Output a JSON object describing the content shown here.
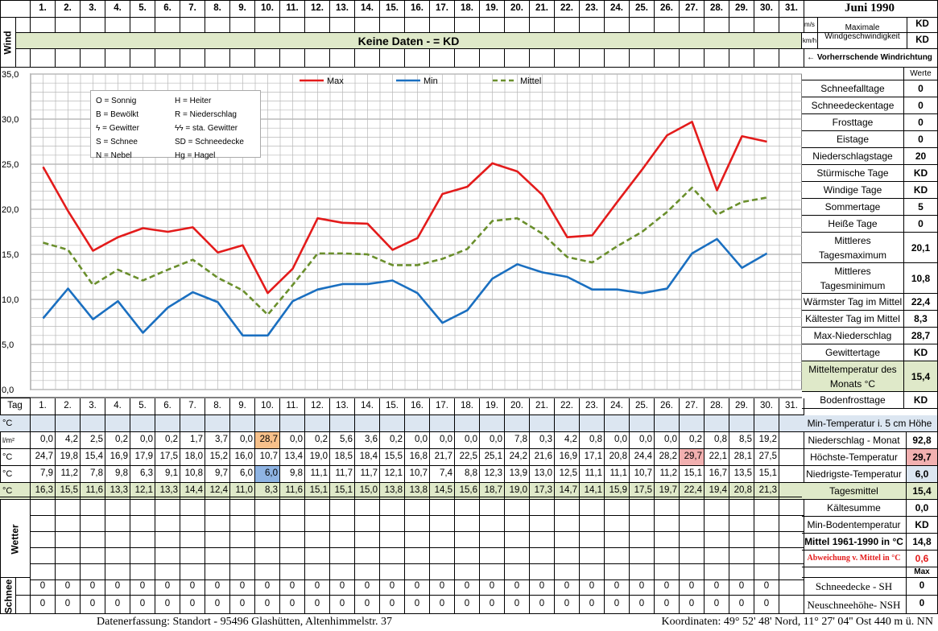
{
  "header": {
    "month_title": "Juni 1990",
    "days": [
      "1.",
      "2.",
      "3.",
      "4.",
      "5.",
      "6.",
      "7.",
      "8.",
      "9.",
      "10.",
      "11.",
      "12.",
      "13.",
      "14.",
      "15.",
      "16.",
      "17.",
      "18.",
      "19.",
      "20.",
      "21.",
      "22.",
      "23.",
      "24.",
      "25.",
      "26.",
      "27.",
      "28.",
      "29.",
      "30.",
      "31."
    ]
  },
  "wind": {
    "label": "Wind",
    "banner": "Keine Daten -  = KD",
    "unit_ms": "m/s",
    "unit_kmh": "km/h",
    "max_label_1": "Maximale",
    "max_label_2": "Windgeschwindigkeit",
    "max_ms": "KD",
    "max_kmh": "KD",
    "direction_label": "← Vorherrschende Windrichtung"
  },
  "legend_keys": {
    "row1a": "O = Sonnig",
    "row1b": "H = Heiter",
    "row2a": "B = Bewölkt",
    "row2b": "R = Niederschlag",
    "row3a": "ϟ = Gewitter",
    "row3b": "ϟϟ = sta. Gewitter",
    "row4a": "S = Schnee",
    "row4b": "SD = Schneedecke",
    "row5a": "N = Nebel",
    "row5b": "Hg = Hagel"
  },
  "chart_data": {
    "type": "line",
    "x": [
      1,
      2,
      3,
      4,
      5,
      6,
      7,
      8,
      9,
      10,
      11,
      12,
      13,
      14,
      15,
      16,
      17,
      18,
      19,
      20,
      21,
      22,
      23,
      24,
      25,
      26,
      27,
      28,
      29,
      30
    ],
    "ylim": [
      0,
      35
    ],
    "yticks": [
      "35,0",
      "30,0",
      "25,0",
      "20,0",
      "15,0",
      "10,0",
      "5,0",
      "0,0"
    ],
    "grid": true,
    "legend": "top",
    "series": [
      {
        "name": "Max",
        "color": "#e31b1b",
        "dash": false,
        "values": [
          24.7,
          19.8,
          15.4,
          16.9,
          17.9,
          17.5,
          18.0,
          15.2,
          16.0,
          10.7,
          13.4,
          19.0,
          18.5,
          18.4,
          15.5,
          16.8,
          21.7,
          22.5,
          25.1,
          24.2,
          21.6,
          16.9,
          17.1,
          20.8,
          24.4,
          28.2,
          29.7,
          22.1,
          28.1,
          27.5
        ]
      },
      {
        "name": "Min",
        "color": "#1a6fc0",
        "dash": false,
        "values": [
          7.9,
          11.2,
          7.8,
          9.8,
          6.3,
          9.1,
          10.8,
          9.7,
          6.0,
          6.0,
          9.8,
          11.1,
          11.7,
          11.7,
          12.1,
          10.7,
          7.4,
          8.8,
          12.3,
          13.9,
          13.0,
          12.5,
          11.1,
          11.1,
          10.7,
          11.2,
          15.1,
          16.7,
          13.5,
          15.1
        ]
      },
      {
        "name": "Mittel",
        "color": "#6a8f2c",
        "dash": true,
        "values": [
          16.3,
          15.5,
          11.6,
          13.3,
          12.1,
          13.3,
          14.4,
          12.4,
          11.0,
          8.3,
          11.6,
          15.1,
          15.1,
          15.0,
          13.8,
          13.8,
          14.5,
          15.6,
          18.7,
          19.0,
          17.3,
          14.7,
          14.1,
          15.9,
          17.5,
          19.7,
          22.4,
          19.4,
          20.8,
          21.3
        ]
      }
    ]
  },
  "table": {
    "tag_label": "Tag",
    "rows": [
      {
        "unit": "°C",
        "values": [
          "",
          "",
          "",
          "",
          "",
          "",
          "",
          "",
          "",
          "",
          "",
          "",
          "",
          "",
          "",
          "",
          "",
          "",
          "",
          "",
          "",
          "",
          "",
          "",
          "",
          "",
          "",
          "",
          "",
          "",
          ""
        ]
      },
      {
        "unit": "l/m²",
        "values": [
          "0,0",
          "4,2",
          "2,5",
          "0,2",
          "0,0",
          "0,2",
          "1,7",
          "3,7",
          "0,0",
          "28,7",
          "0,0",
          "0,2",
          "5,6",
          "3,6",
          "0,2",
          "0,0",
          "0,0",
          "0,0",
          "0,0",
          "7,8",
          "0,3",
          "4,2",
          "0,8",
          "0,0",
          "0,0",
          "0,0",
          "0,2",
          "0,8",
          "8,5",
          "19,2",
          ""
        ]
      },
      {
        "unit": "°C",
        "values": [
          "24,7",
          "19,8",
          "15,4",
          "16,9",
          "17,9",
          "17,5",
          "18,0",
          "15,2",
          "16,0",
          "10,7",
          "13,4",
          "19,0",
          "18,5",
          "18,4",
          "15,5",
          "16,8",
          "21,7",
          "22,5",
          "25,1",
          "24,2",
          "21,6",
          "16,9",
          "17,1",
          "20,8",
          "24,4",
          "28,2",
          "29,7",
          "22,1",
          "28,1",
          "27,5",
          ""
        ]
      },
      {
        "unit": "°C",
        "values": [
          "7,9",
          "11,2",
          "7,8",
          "9,8",
          "6,3",
          "9,1",
          "10,8",
          "9,7",
          "6,0",
          "6,0",
          "9,8",
          "11,1",
          "11,7",
          "11,7",
          "12,1",
          "10,7",
          "7,4",
          "8,8",
          "12,3",
          "13,9",
          "13,0",
          "12,5",
          "11,1",
          "11,1",
          "10,7",
          "11,2",
          "15,1",
          "16,7",
          "13,5",
          "15,1",
          ""
        ]
      },
      {
        "unit": "°C",
        "values": [
          "16,3",
          "15,5",
          "11,6",
          "13,3",
          "12,1",
          "13,3",
          "14,4",
          "12,4",
          "11,0",
          "8,3",
          "11,6",
          "15,1",
          "15,1",
          "15,0",
          "13,8",
          "13,8",
          "14,5",
          "15,6",
          "18,7",
          "19,0",
          "17,3",
          "14,7",
          "14,1",
          "15,9",
          "17,5",
          "19,7",
          "22,4",
          "19,4",
          "20,8",
          "21,3",
          ""
        ]
      }
    ],
    "wetter_label": "Wetter",
    "schnee_label": "Schnee",
    "snow_sh": [
      "0",
      "0",
      "0",
      "0",
      "0",
      "0",
      "0",
      "0",
      "0",
      "0",
      "0",
      "0",
      "0",
      "0",
      "0",
      "0",
      "0",
      "0",
      "0",
      "0",
      "0",
      "0",
      "0",
      "0",
      "0",
      "0",
      "0",
      "0",
      "0",
      "0",
      ""
    ],
    "snow_nsh": [
      "0",
      "0",
      "0",
      "0",
      "0",
      "0",
      "0",
      "0",
      "0",
      "0",
      "0",
      "0",
      "0",
      "0",
      "0",
      "0",
      "0",
      "0",
      "0",
      "0",
      "0",
      "0",
      "0",
      "0",
      "0",
      "0",
      "0",
      "0",
      "0",
      "0",
      ""
    ]
  },
  "stats": {
    "werte_label": "Werte",
    "items": [
      {
        "label": "Schneefalltage",
        "value": "0"
      },
      {
        "label": "Schneedeckentage",
        "value": "0"
      },
      {
        "label": "Frosttage",
        "value": "0"
      },
      {
        "label": "Eistage",
        "value": "0"
      },
      {
        "label": "Niederschlagstage",
        "value": "20"
      },
      {
        "label": "Stürmische Tage",
        "value": "KD"
      },
      {
        "label": "Windige Tage",
        "value": "KD"
      },
      {
        "label": "Sommertage",
        "value": "5"
      },
      {
        "label": "Heiße Tage",
        "value": "0"
      },
      {
        "label": "Mittleres Tagesmaximum",
        "value": "20,1"
      },
      {
        "label": "Mittleres Tagesminimum",
        "value": "10,8"
      },
      {
        "label": "Wärmster Tag im Mittel",
        "value": "22,4"
      },
      {
        "label": "Kältester Tag im Mittel",
        "value": "8,3"
      },
      {
        "label": "Max-Niederschlag",
        "value": "28,7"
      },
      {
        "label": "Gewittertage",
        "value": "KD"
      },
      {
        "label": "Mitteltemperatur des Monats °C",
        "value": "15,4"
      },
      {
        "label": "Bodenfrosttage",
        "value": "KD"
      }
    ],
    "min5cm": "Min-Temperatur i. 5 cm Höhe",
    "summary": [
      {
        "label": "Niederschlag - Monat",
        "value": "92,8"
      },
      {
        "label": "Höchste-Temperatur",
        "value": "29,7"
      },
      {
        "label": "Niedrigste-Temperatur",
        "value": "6,0"
      },
      {
        "label": "Tagesmittel",
        "value": "15,4"
      },
      {
        "label": "Kältesumme",
        "value": "0,0"
      },
      {
        "label": "Min-Bodentemperatur",
        "value": "KD"
      },
      {
        "label": "Mittel 1961-1990 in °C",
        "value": "14,8"
      },
      {
        "label": "Abweichung v. Mittel in °C",
        "value": "0,6"
      }
    ],
    "max_label": "Max",
    "snow_sh_label": "Schneedecke -  SH",
    "snow_sh_value": "0",
    "snow_nsh_label": "Neuschneehöhe- NSH",
    "snow_nsh_value": "0"
  },
  "footer": {
    "left": "Datenerfassung:  Standort -  95496  Glashütten, Altenhimmelstr. 37",
    "right": "Koordinaten:  49° 52' 48' Nord,  11° 27' 04'' Ost   440 m ü. NN"
  }
}
